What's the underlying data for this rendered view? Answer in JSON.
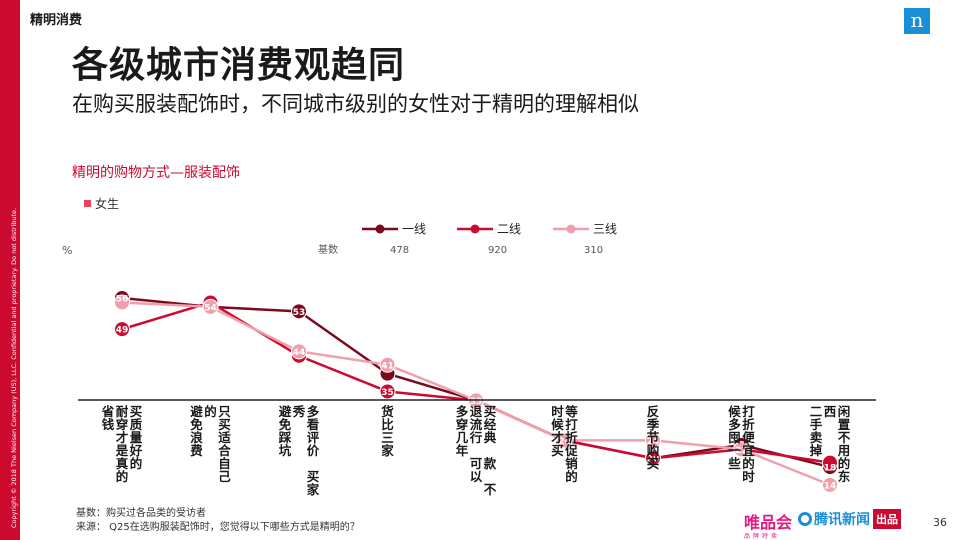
{
  "header": {
    "section_label": "精明消费",
    "title": "各级城市消费观趋同",
    "subtitle": "在购买服装配饰时，不同城市级别的女性对于精明的理解相似",
    "brand_letter": "n"
  },
  "copyright": "Copyright © 2018 The Nielsen Company (US), LLC. Confidential and proprietary. Do not distribute.",
  "chart_data": {
    "type": "line",
    "title": "精明的购物方式—服装配饰",
    "subtitle": "女生",
    "ylabel": "%",
    "base_label": "基数",
    "ylim": [
      0,
      60
    ],
    "categories": [
      "买质量好的 耐穿才是真的 省钱",
      "只买适合自己 的 避免浪费",
      "多看评价 买家 秀 避免踩坑",
      "货比三家",
      "买经典 款 不 退流行 可以 多穿几年",
      "等打折促销的 时候才买",
      "反季节购买",
      "打折便宜的时 候多囤一些",
      "闲置不用的东 西 二手卖掉"
    ],
    "series": [
      {
        "name": "一线",
        "base": "478",
        "color": "#7a0a1e",
        "values": [
          56,
          54,
          53,
          39,
          33,
          24,
          20,
          23,
          18
        ]
      },
      {
        "name": "二线",
        "base": "920",
        "color": "#cc0a2f",
        "values": [
          49,
          55,
          43,
          35,
          33,
          24,
          20,
          22,
          19
        ]
      },
      {
        "name": "三线",
        "base": "310",
        "color": "#f0a0ac",
        "values": [
          55,
          54,
          44,
          41,
          33,
          24,
          24,
          22,
          14
        ]
      }
    ],
    "data_labels": [
      56,
      54,
      53,
      41,
      33,
      24,
      24,
      22,
      18
    ],
    "data_labels_low": [
      49,
      null,
      44,
      35,
      null,
      null,
      20,
      null,
      14
    ],
    "category_columns": [
      [
        "买质量好的",
        "耐穿才是真的",
        "省钱"
      ],
      [
        "只买适合自己",
        "的",
        "避免浪费"
      ],
      [
        "多看评价 买家",
        "秀",
        "避免踩坑"
      ],
      [
        "货比三家"
      ],
      [
        "买经典 款 不",
        "退流行 可以",
        "多穿几年"
      ],
      [
        "等打折促销的",
        "时候才买"
      ],
      [
        "反季节购买"
      ],
      [
        "打折便宜的时",
        "候多囤一些"
      ],
      [
        "闲置不用的东",
        "西",
        "二手卖掉"
      ]
    ]
  },
  "footer": {
    "base_note": "基数：购买过各品类的受访者",
    "source_note": "来源： Q25在选购服装配饰时，您觉得以下哪些方式是精明的？",
    "logo_vip": "唯品会",
    "logo_vip_sub": "品牌特卖",
    "logo_tencent": "腾讯新闻",
    "logo_chupin": "出品",
    "page_number": "36"
  }
}
